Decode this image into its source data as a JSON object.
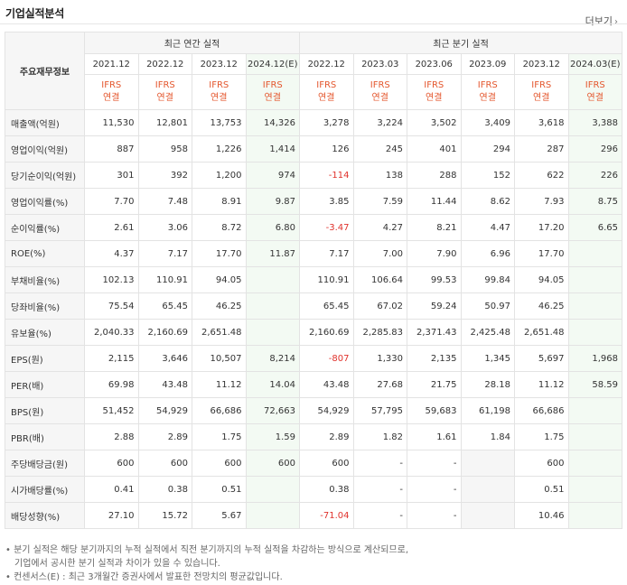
{
  "header": {
    "title": "기업실적분석",
    "more_label": "더보기",
    "more_arrow": "›"
  },
  "table": {
    "corner_label": "주요재무정보",
    "annual_group": "최근 연간 실적",
    "quarter_group": "최근 분기 실적",
    "periods": [
      "2021.12",
      "2022.12",
      "2023.12",
      "2024.12(E)",
      "2022.12",
      "2023.03",
      "2023.06",
      "2023.09",
      "2023.12",
      "2024.03(E)"
    ],
    "ifrs_top": "IFRS",
    "ifrs_bottom": "연결",
    "rows": [
      {
        "label": "매출액(억원)",
        "values": [
          "11,530",
          "12,801",
          "13,753",
          "14,326",
          "3,278",
          "3,224",
          "3,502",
          "3,409",
          "3,618",
          "3,388"
        ]
      },
      {
        "label": "영업이익(억원)",
        "values": [
          "887",
          "958",
          "1,226",
          "1,414",
          "126",
          "245",
          "401",
          "294",
          "287",
          "296"
        ]
      },
      {
        "label": "당기순이익(억원)",
        "values": [
          "301",
          "392",
          "1,200",
          "974",
          "-114",
          "138",
          "288",
          "152",
          "622",
          "226"
        ]
      },
      {
        "label": "영업이익률(%)",
        "values": [
          "7.70",
          "7.48",
          "8.91",
          "9.87",
          "3.85",
          "7.59",
          "11.44",
          "8.62",
          "7.93",
          "8.75"
        ]
      },
      {
        "label": "순이익률(%)",
        "values": [
          "2.61",
          "3.06",
          "8.72",
          "6.80",
          "-3.47",
          "4.27",
          "8.21",
          "4.47",
          "17.20",
          "6.65"
        ]
      },
      {
        "label": "ROE(%)",
        "values": [
          "4.37",
          "7.17",
          "17.70",
          "11.87",
          "7.17",
          "7.00",
          "7.90",
          "6.96",
          "17.70",
          ""
        ]
      },
      {
        "label": "부채비율(%)",
        "values": [
          "102.13",
          "110.91",
          "94.05",
          "",
          "110.91",
          "106.64",
          "99.53",
          "99.84",
          "94.05",
          ""
        ]
      },
      {
        "label": "당좌비율(%)",
        "values": [
          "75.54",
          "65.45",
          "46.25",
          "",
          "65.45",
          "67.02",
          "59.24",
          "50.97",
          "46.25",
          ""
        ]
      },
      {
        "label": "유보율(%)",
        "values": [
          "2,040.33",
          "2,160.69",
          "2,651.48",
          "",
          "2,160.69",
          "2,285.83",
          "2,371.43",
          "2,425.48",
          "2,651.48",
          ""
        ]
      },
      {
        "label": "EPS(원)",
        "values": [
          "2,115",
          "3,646",
          "10,507",
          "8,214",
          "-807",
          "1,330",
          "2,135",
          "1,345",
          "5,697",
          "1,968"
        ]
      },
      {
        "label": "PER(배)",
        "values": [
          "69.98",
          "43.48",
          "11.12",
          "14.04",
          "43.48",
          "27.68",
          "21.75",
          "28.18",
          "11.12",
          "58.59"
        ]
      },
      {
        "label": "BPS(원)",
        "values": [
          "51,452",
          "54,929",
          "66,686",
          "72,663",
          "54,929",
          "57,795",
          "59,683",
          "61,198",
          "66,686",
          ""
        ]
      },
      {
        "label": "PBR(배)",
        "values": [
          "2.88",
          "2.89",
          "1.75",
          "1.59",
          "2.89",
          "1.82",
          "1.61",
          "1.84",
          "1.75",
          ""
        ]
      },
      {
        "label": "주당배당금(원)",
        "values": [
          "600",
          "600",
          "600",
          "600",
          "600",
          "-",
          "-",
          "",
          "600",
          ""
        ]
      },
      {
        "label": "시가배당률(%)",
        "values": [
          "0.41",
          "0.38",
          "0.51",
          "",
          "0.38",
          "-",
          "-",
          "",
          "0.51",
          ""
        ]
      },
      {
        "label": "배당성향(%)",
        "values": [
          "27.10",
          "15.72",
          "5.67",
          "",
          "-71.04",
          "-",
          "-",
          "",
          "10.46",
          ""
        ]
      }
    ]
  },
  "notes": {
    "line1": "• 분기 실적은 해당 분기까지의 누적 실적에서 직전 분기까지의 누적 실적을 차감하는 방식으로 계산되므로,",
    "line2": "  기업에서 공시한 분기 실적과 차이가 있을 수 있습니다.",
    "line3": "• 컨센서스(E) : 최근 3개월간 증권사에서 발표한 전망치의 평균값입니다."
  },
  "colors": {
    "ifrs": "#e4572e",
    "negative": "#e0322c",
    "estimate_bg": "#f3faf3",
    "label_bg": "#f6f6f6"
  }
}
